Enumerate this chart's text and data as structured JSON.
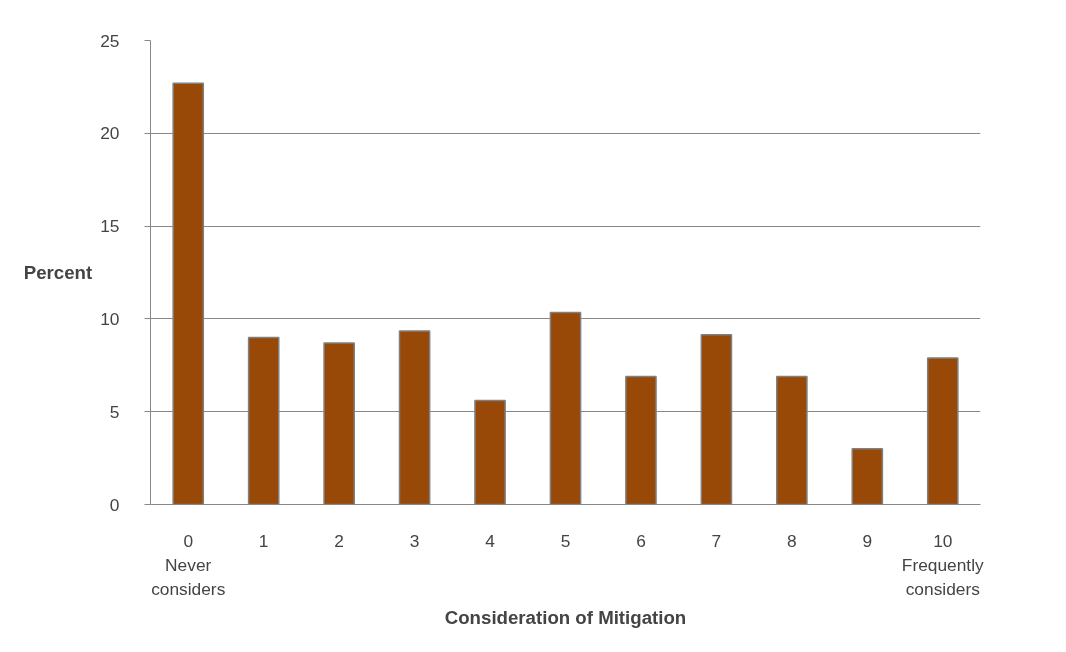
{
  "chart_data": {
    "type": "bar",
    "xlabel": "Consideration of Mitigation",
    "ylabel": "Percent",
    "categories": [
      "0\nNever\nconsiders",
      "1",
      "2",
      "3",
      "4",
      "5",
      "6",
      "7",
      "8",
      "9",
      "10\nFrequently\nconsiders"
    ],
    "values": [
      22.7,
      9.0,
      8.7,
      9.35,
      5.6,
      10.35,
      6.9,
      9.15,
      6.9,
      3.0,
      7.9
    ],
    "color": "#984807",
    "ylim": [
      0,
      25
    ],
    "yticks": [
      0,
      5,
      10,
      15,
      20,
      25
    ],
    "grid": "y"
  }
}
